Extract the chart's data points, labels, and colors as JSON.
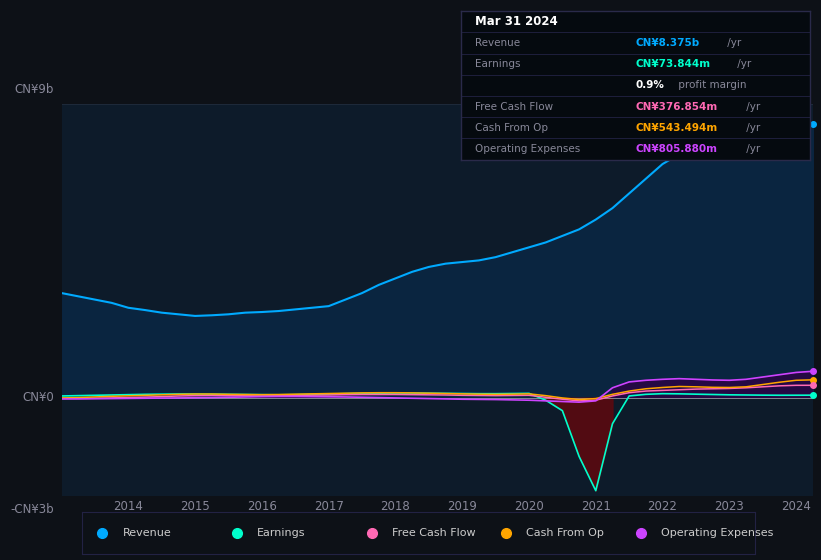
{
  "bg_color": "#0d1117",
  "plot_bg_color": "#0d1b2a",
  "ylabel_top": "CN¥9b",
  "ylabel_mid": "CN¥0",
  "ylabel_bot": "-CN¥3b",
  "ylim": [
    -3000000000,
    9000000000
  ],
  "years": [
    2013.0,
    2013.25,
    2013.5,
    2013.75,
    2014.0,
    2014.25,
    2014.5,
    2014.75,
    2015.0,
    2015.25,
    2015.5,
    2015.75,
    2016.0,
    2016.25,
    2016.5,
    2016.75,
    2017.0,
    2017.25,
    2017.5,
    2017.75,
    2018.0,
    2018.25,
    2018.5,
    2018.75,
    2019.0,
    2019.25,
    2019.5,
    2019.75,
    2020.0,
    2020.25,
    2020.5,
    2020.75,
    2021.0,
    2021.25,
    2021.5,
    2021.75,
    2022.0,
    2022.25,
    2022.5,
    2022.75,
    2023.0,
    2023.25,
    2023.5,
    2023.75,
    2024.0,
    2024.25
  ],
  "revenue": [
    3200000000,
    3100000000,
    3000000000,
    2900000000,
    2750000000,
    2680000000,
    2600000000,
    2550000000,
    2500000000,
    2520000000,
    2550000000,
    2600000000,
    2620000000,
    2650000000,
    2700000000,
    2750000000,
    2800000000,
    3000000000,
    3200000000,
    3450000000,
    3650000000,
    3850000000,
    4000000000,
    4100000000,
    4150000000,
    4200000000,
    4300000000,
    4450000000,
    4600000000,
    4750000000,
    4950000000,
    5150000000,
    5450000000,
    5800000000,
    6250000000,
    6700000000,
    7150000000,
    7450000000,
    7350000000,
    7280000000,
    7320000000,
    7480000000,
    7750000000,
    8000000000,
    8200000000,
    8375000000
  ],
  "earnings": [
    50000000,
    60000000,
    70000000,
    80000000,
    90000000,
    100000000,
    105000000,
    110000000,
    110000000,
    105000000,
    100000000,
    95000000,
    90000000,
    85000000,
    90000000,
    100000000,
    110000000,
    120000000,
    130000000,
    135000000,
    140000000,
    140000000,
    135000000,
    130000000,
    125000000,
    120000000,
    120000000,
    125000000,
    130000000,
    -80000000,
    -400000000,
    -1800000000,
    -2850000000,
    -800000000,
    50000000,
    100000000,
    120000000,
    115000000,
    105000000,
    95000000,
    85000000,
    80000000,
    75000000,
    72000000,
    73000000,
    73844000
  ],
  "free_cash_flow": [
    -30000000,
    -25000000,
    -20000000,
    -10000000,
    0,
    15000000,
    30000000,
    50000000,
    60000000,
    65000000,
    60000000,
    55000000,
    50000000,
    55000000,
    65000000,
    75000000,
    80000000,
    90000000,
    95000000,
    95000000,
    95000000,
    90000000,
    85000000,
    80000000,
    70000000,
    65000000,
    60000000,
    65000000,
    70000000,
    10000000,
    -50000000,
    -100000000,
    -80000000,
    50000000,
    150000000,
    200000000,
    220000000,
    240000000,
    260000000,
    270000000,
    280000000,
    300000000,
    330000000,
    360000000,
    376000000,
    376854000
  ],
  "cash_from_op": [
    -10000000,
    0,
    20000000,
    40000000,
    55000000,
    70000000,
    85000000,
    100000000,
    110000000,
    110000000,
    100000000,
    95000000,
    90000000,
    95000000,
    105000000,
    115000000,
    125000000,
    135000000,
    145000000,
    150000000,
    150000000,
    145000000,
    135000000,
    125000000,
    115000000,
    105000000,
    100000000,
    105000000,
    115000000,
    60000000,
    -10000000,
    -60000000,
    -30000000,
    100000000,
    200000000,
    270000000,
    310000000,
    340000000,
    330000000,
    315000000,
    310000000,
    330000000,
    400000000,
    470000000,
    530000000,
    543494000
  ],
  "op_expenses": [
    -40000000,
    -40000000,
    -35000000,
    -30000000,
    -25000000,
    -20000000,
    -15000000,
    -10000000,
    -5000000,
    0,
    10000000,
    20000000,
    30000000,
    35000000,
    35000000,
    30000000,
    25000000,
    20000000,
    10000000,
    0,
    -10000000,
    -20000000,
    -30000000,
    -40000000,
    -50000000,
    -55000000,
    -60000000,
    -70000000,
    -80000000,
    -100000000,
    -120000000,
    -140000000,
    -100000000,
    300000000,
    480000000,
    530000000,
    560000000,
    580000000,
    560000000,
    540000000,
    530000000,
    560000000,
    630000000,
    700000000,
    770000000,
    805880000
  ],
  "revenue_color": "#00aaff",
  "earnings_color": "#00ffcc",
  "fcf_color": "#ff69b4",
  "cashop_color": "#ffa500",
  "opex_color": "#cc44ff",
  "revenue_fill": "#0a2540",
  "earnings_fill_neg": "#5a0a10",
  "legend_bg": "#0d1117",
  "table_bg": "#050a0f",
  "table_border": "#2a2a4a",
  "info_box": {
    "date": "Mar 31 2024",
    "revenue_label": "Revenue",
    "revenue_val": "CN¥8.375b",
    "revenue_color": "#00aaff",
    "earnings_label": "Earnings",
    "earnings_val": "CN¥73.844m",
    "earnings_color": "#00ffcc",
    "margin_val": "0.9%",
    "margin_text": " profit margin",
    "fcf_label": "Free Cash Flow",
    "fcf_val": "CN¥376.854m",
    "fcf_color": "#ff69b4",
    "cashop_label": "Cash From Op",
    "cashop_val": "CN¥543.494m",
    "cashop_color": "#ffa500",
    "opex_label": "Operating Expenses",
    "opex_val": "CN¥805.880m",
    "opex_color": "#cc44ff"
  },
  "xticks": [
    2014,
    2015,
    2016,
    2017,
    2018,
    2019,
    2020,
    2021,
    2022,
    2023,
    2024
  ],
  "text_color": "#888899",
  "grid_color": "#1e2a3a",
  "white_line": "#cccccc"
}
